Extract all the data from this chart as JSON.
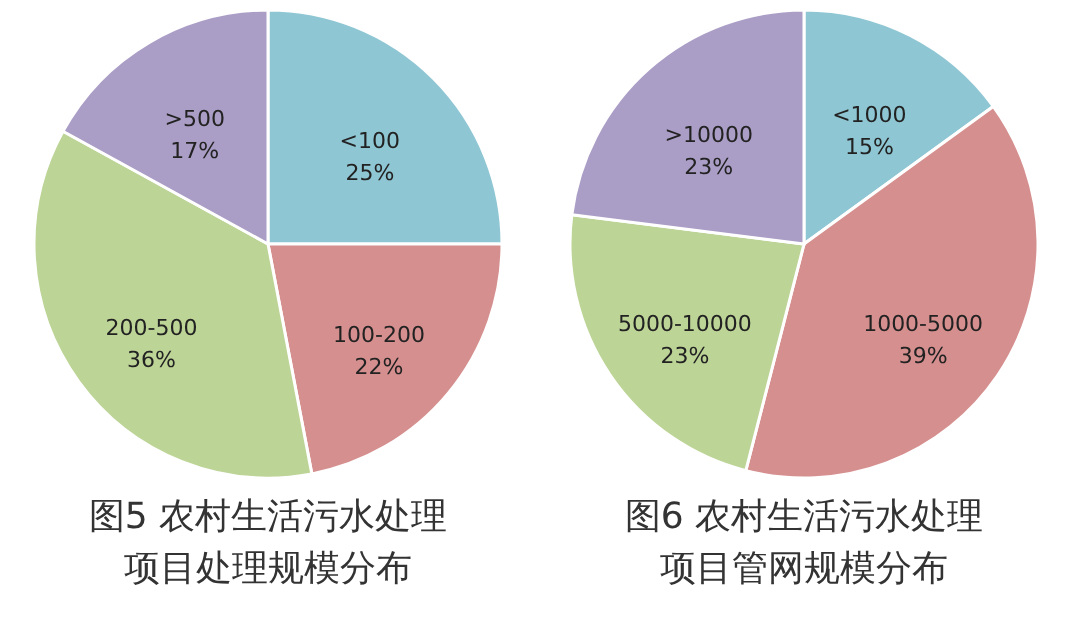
{
  "chart_data": [
    {
      "type": "pie",
      "title": "图5 农村生活污水处理项目处理规模分布",
      "categories": [
        "<100",
        "100-200",
        "200-500",
        ">500"
      ],
      "values": [
        25,
        22,
        36,
        17
      ],
      "colors": [
        "#8fc6d3",
        "#d58f8e",
        "#bdd497",
        "#ab9ec6"
      ],
      "value_labels": [
        "25%",
        "22%",
        "36%",
        "17%"
      ]
    },
    {
      "type": "pie",
      "title": "图6 农村生活污水处理项目管网规模分布",
      "categories": [
        "<1000",
        "1000-5000",
        "5000-10000",
        ">10000"
      ],
      "values": [
        15,
        39,
        23,
        23
      ],
      "colors": [
        "#8fc6d3",
        "#d58f8e",
        "#bdd497",
        "#ab9ec6"
      ],
      "value_labels": [
        "15%",
        "39%",
        "23%",
        "23%"
      ]
    }
  ]
}
